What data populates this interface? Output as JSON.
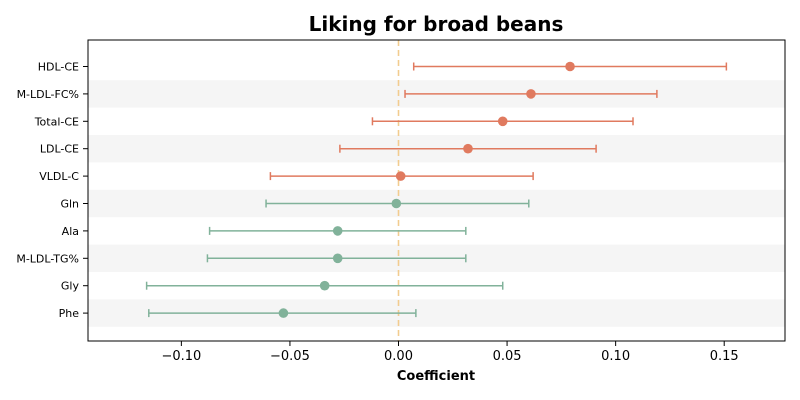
{
  "chart_data": {
    "type": "forest",
    "title": "Liking for broad beans",
    "xlabel": "Coefficient",
    "ylabel": "",
    "xlim": [
      -0.143,
      0.178
    ],
    "xticks": [
      -0.1,
      -0.05,
      0.0,
      0.05,
      0.1,
      0.15
    ],
    "xtick_labels": [
      "−0.10",
      "−0.05",
      "0.00",
      "0.05",
      "0.10",
      "0.15"
    ],
    "reference_line": 0.0,
    "grid": false,
    "alternating_row_shading": true,
    "colors": {
      "positive": "#e07a5f",
      "negative": "#81b29a",
      "reference": "#f2cc8f",
      "shade": "#f5f5f5"
    },
    "points": [
      {
        "label": "HDL-CE",
        "coef": 0.079,
        "low": 0.007,
        "high": 0.151,
        "group": "positive"
      },
      {
        "label": "M-LDL-FC%",
        "coef": 0.061,
        "low": 0.003,
        "high": 0.119,
        "group": "positive"
      },
      {
        "label": "Total-CE",
        "coef": 0.048,
        "low": -0.012,
        "high": 0.108,
        "group": "positive"
      },
      {
        "label": "LDL-CE",
        "coef": 0.032,
        "low": -0.027,
        "high": 0.091,
        "group": "positive"
      },
      {
        "label": "VLDL-C",
        "coef": 0.001,
        "low": -0.059,
        "high": 0.062,
        "group": "positive"
      },
      {
        "label": "Gln",
        "coef": -0.001,
        "low": -0.061,
        "high": 0.06,
        "group": "negative"
      },
      {
        "label": "Ala",
        "coef": -0.028,
        "low": -0.087,
        "high": 0.031,
        "group": "negative"
      },
      {
        "label": "M-LDL-TG%",
        "coef": -0.028,
        "low": -0.088,
        "high": 0.031,
        "group": "negative"
      },
      {
        "label": "Gly",
        "coef": -0.034,
        "low": -0.116,
        "high": 0.048,
        "group": "negative"
      },
      {
        "label": "Phe",
        "coef": -0.053,
        "low": -0.115,
        "high": 0.008,
        "group": "negative"
      }
    ]
  }
}
